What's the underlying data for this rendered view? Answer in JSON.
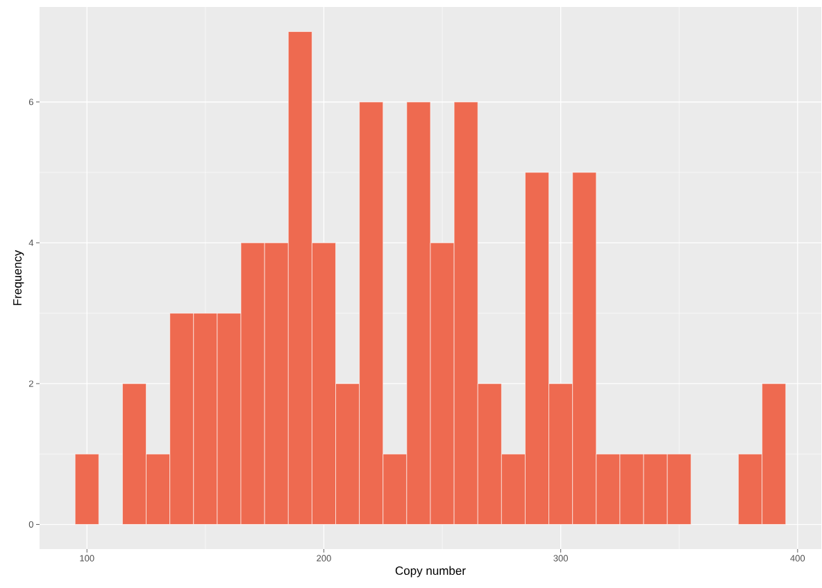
{
  "chart_data": {
    "type": "histogram",
    "xlabel": "Copy number",
    "ylabel": "Frequency",
    "bins": [
      95,
      105,
      115,
      125,
      135,
      145,
      155,
      165,
      175,
      185,
      195,
      205,
      215,
      225,
      235,
      245,
      255,
      265,
      275,
      285,
      295,
      305,
      315,
      325,
      335,
      345,
      355,
      365,
      375,
      385,
      395
    ],
    "values": [
      1,
      0,
      2,
      1,
      3,
      3,
      3,
      4,
      4,
      7,
      4,
      2,
      6,
      1,
      6,
      4,
      6,
      2,
      1,
      5,
      2,
      5,
      1,
      1,
      1,
      1,
      0,
      0,
      1,
      2
    ],
    "color": "#ee6a50",
    "xlim": [
      80,
      410
    ],
    "ylim": [
      -0.35,
      7.35
    ],
    "xticks": [
      100,
      200,
      300,
      400
    ],
    "yticks": [
      0,
      2,
      4,
      6
    ],
    "grid": true
  }
}
